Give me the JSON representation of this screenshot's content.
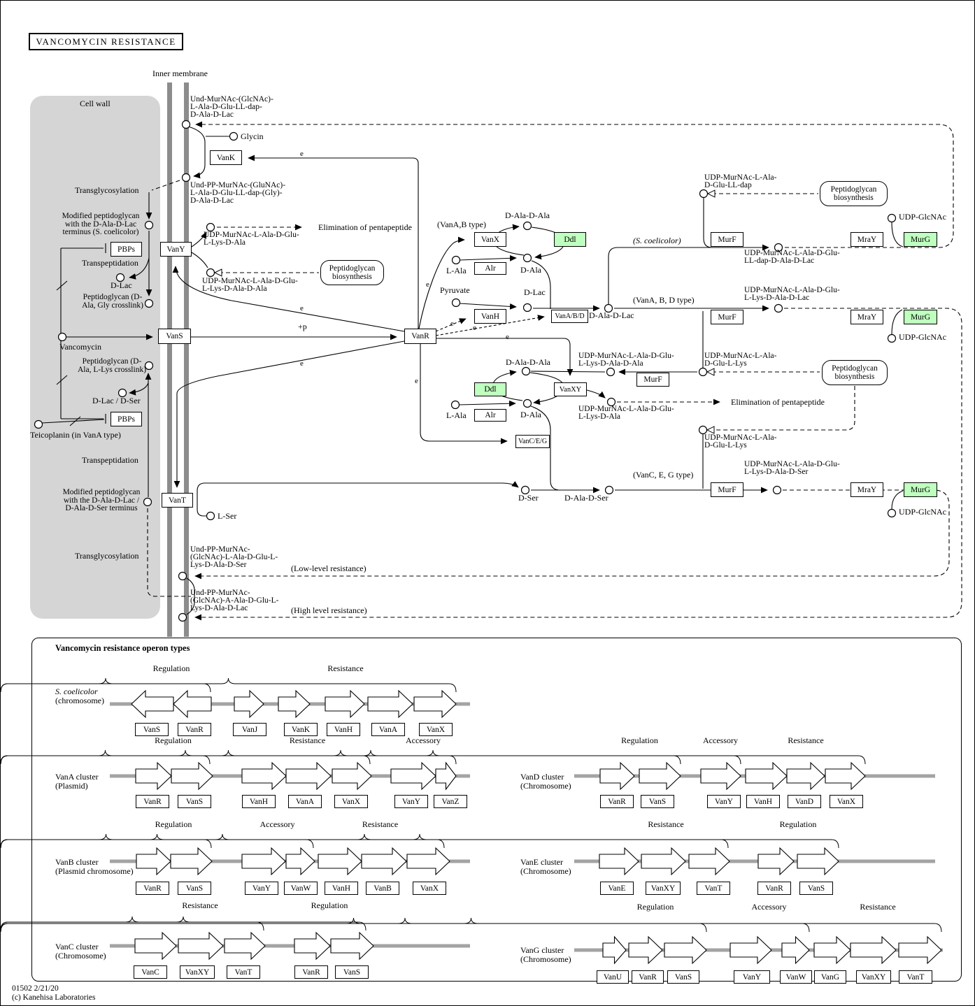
{
  "title": "VANCOMYCIN RESISTANCE",
  "section_title": "Vancomycin resistance operon types",
  "footer": {
    "map_id": "01502 2/21/20",
    "copyright": "(c) Kanehisa Laboratories"
  },
  "colors": {
    "highlight_green": "#bfffbf",
    "membrane_gray": "#8c8c8c",
    "cellwall_gray": "#d5d5d5",
    "chromosome_gray": "#a3a3a3"
  },
  "labels": [
    {
      "id": "inner-membrane",
      "t": "Inner membrane"
    },
    {
      "id": "cell-wall",
      "t": "Cell wall"
    },
    {
      "id": "und-murnac-glcnac-top",
      "t": "Und-MurNAc-(GlcNAc)-\nL-Ala-D-Glu-LL-dap-\nD-Ala-D-Lac"
    },
    {
      "id": "glycin",
      "t": "Glycin"
    },
    {
      "id": "und-pp-murnac-top",
      "t": "Und-PP-MurNAc-(GluNAc)-\nL-Ala-D-Glu-LL-dap-(Gly)-\nD-Ala-D-Lac"
    },
    {
      "id": "transglycosylation-1",
      "t": "Transglycosylation"
    },
    {
      "id": "modified-peptidoglycan-1",
      "t": "Modified peptidoglycan\nwith the D-Ala-D-Lac\nterminus (S. coelicolor)"
    },
    {
      "id": "transpeptidation-1",
      "t": "Transpeptidation"
    },
    {
      "id": "d-lac-1",
      "t": "D-Lac"
    },
    {
      "id": "peptidoglycan-gly-crosslink",
      "t": "Peptidoglycan (D-\nAla, Gly crosslink)"
    },
    {
      "id": "vancomycin",
      "t": "Vancomycin"
    },
    {
      "id": "peptidoglycan-lys-crosslink",
      "t": "Peptidoglycan (D-\nAla, L-Lys crosslink)"
    },
    {
      "id": "d-lac-d-ser",
      "t": "D-Lac / D-Ser"
    },
    {
      "id": "teicoplanin",
      "t": "Teicoplanin (in VanA type)"
    },
    {
      "id": "transpeptidation-2",
      "t": "Transpeptidation"
    },
    {
      "id": "modified-peptidoglycan-2",
      "t": "Modified peptidoglycan\nwith the D-Ala-D-Lac /\nD-Ala-D-Ser terminus"
    },
    {
      "id": "l-ser",
      "t": "L-Ser"
    },
    {
      "id": "transglycosylation-2",
      "t": "Transglycosylation"
    },
    {
      "id": "und-pp-murnac-ser",
      "t": "Und-PP-MurNAc-\n(GlcNAc)-L-Ala-D-Glu-L-\nLys-D-Ala-D-Ser"
    },
    {
      "id": "low-level-resistance",
      "t": "(Low-level resistance)"
    },
    {
      "id": "und-pp-murnac-lac",
      "t": "Und-PP-MurNAc-\n(GlcNAc)-A-Ala-D-Glu-L-\nLys-D-Ala-D-Lac"
    },
    {
      "id": "high-level-resistance",
      "t": "(High level resistance)"
    },
    {
      "id": "udp-murnac-lys-ala",
      "t": "UDP-MurNAc-L-Ala-D-Glu-\nL-Lys-D-Ala"
    },
    {
      "id": "elimination-1",
      "t": "Elimination of pentapeptide"
    },
    {
      "id": "udp-murnac-lys-ala-ala",
      "t": "UDP-MurNAc-L-Ala-D-Glu-\nL-Lys-D-Ala-D-Ala"
    },
    {
      "id": "plus-p",
      "t": "+p"
    },
    {
      "id": "vana-b-type",
      "t": "(VanA,B type)"
    },
    {
      "id": "d-ala-d-ala-1",
      "t": "D-Ala-D-Ala"
    },
    {
      "id": "s-coelicolor",
      "t": "(S. coelicolor)"
    },
    {
      "id": "l-ala-1",
      "t": "L-Ala"
    },
    {
      "id": "d-ala-1",
      "t": "D-Ala"
    },
    {
      "id": "pyruvate",
      "t": "Pyruvate"
    },
    {
      "id": "d-lac-2",
      "t": "D-Lac"
    },
    {
      "id": "d-ala-d-lac",
      "t": "D-Ala-D-Lac"
    },
    {
      "id": "vana-b-d-type",
      "t": "(VanA, B, D type)"
    },
    {
      "id": "udp-murnac-lldap",
      "t": "UDP-MurNAc-L-Ala-\nD-Glu-LL-dap"
    },
    {
      "id": "udp-glcnac-1",
      "t": "UDP-GlcNAc"
    },
    {
      "id": "udp-product-lldap",
      "t": "UDP-MurNAc-L-Ala-D-Glu-\nLL-dap-D-Ala-D-Lac"
    },
    {
      "id": "udp-product-lac",
      "t": "UDP-MurNAc-L-Ala-D-Glu-\nL-Lys-D-Ala-D-Lac"
    },
    {
      "id": "udp-glcnac-2",
      "t": "UDP-GlcNAc"
    },
    {
      "id": "udp-murnac-pentapep",
      "t": "UDP-MurNAc-L-Ala-D-Glu-\nL-Lys-D-Ala-D-Ala"
    },
    {
      "id": "udp-murnac-tripep-1",
      "t": "UDP-MurNAc-L-Ala-\nD-Glu-L-Lys"
    },
    {
      "id": "elimination-2",
      "t": "Elimination of pentapeptide"
    },
    {
      "id": "udp-murnac-tetrapep",
      "t": "UDP-MurNAc-L-Ala-D-Glu-\nL-Lys-D-Ala"
    },
    {
      "id": "d-ala-d-ala-2",
      "t": "D-Ala-D-Ala"
    },
    {
      "id": "l-ala-2",
      "t": "L-Ala"
    },
    {
      "id": "d-ala-2",
      "t": "D-Ala"
    },
    {
      "id": "udp-murnac-tripep-2",
      "t": "UDP-MurNAc-L-Ala-\nD-Glu-L-Lys"
    },
    {
      "id": "vanc-e-g-type",
      "t": "(VanC, E, G type)"
    },
    {
      "id": "udp-product-ser",
      "t": "UDP-MurNAc-L-Ala-D-Glu-\nL-Lys-D-Ala-D-Ser"
    },
    {
      "id": "d-ser",
      "t": "D-Ser"
    },
    {
      "id": "d-ala-d-ser",
      "t": "D-Ala-D-Ser"
    },
    {
      "id": "udp-glcnac-3",
      "t": "UDP-GlcNAc"
    },
    {
      "id": "e-vank",
      "t": "e"
    },
    {
      "id": "e-vanx",
      "t": "e"
    },
    {
      "id": "e-vanh",
      "t": "e"
    },
    {
      "id": "e-vanabd",
      "t": "e"
    },
    {
      "id": "e-vanxy",
      "t": "e"
    },
    {
      "id": "e-vanceg",
      "t": "e"
    },
    {
      "id": "e-vany",
      "t": "e"
    },
    {
      "id": "e-vant",
      "t": "e"
    }
  ],
  "boxes": [
    {
      "id": "vank",
      "t": "VanK"
    },
    {
      "id": "vany",
      "t": "VanY"
    },
    {
      "id": "pbps-1",
      "t": "PBPs"
    },
    {
      "id": "vans",
      "t": "VanS"
    },
    {
      "id": "vanr",
      "t": "VanR"
    },
    {
      "id": "vanx",
      "t": "VanX"
    },
    {
      "id": "ddl-1",
      "t": "Ddl",
      "green": true
    },
    {
      "id": "alr-1",
      "t": "Alr"
    },
    {
      "id": "vanh",
      "t": "VanH"
    },
    {
      "id": "vana-b-d",
      "t": "VanA/B/D"
    },
    {
      "id": "murf-1",
      "t": "MurF"
    },
    {
      "id": "mray-1",
      "t": "MraY"
    },
    {
      "id": "murg-1",
      "t": "MurG",
      "green": true
    },
    {
      "id": "murf-2",
      "t": "MurF"
    },
    {
      "id": "mray-2",
      "t": "MraY"
    },
    {
      "id": "murg-2",
      "t": "MurG",
      "green": true
    },
    {
      "id": "ddl-2",
      "t": "Ddl",
      "green": true
    },
    {
      "id": "vanxy",
      "t": "VanXY"
    },
    {
      "id": "murf-3",
      "t": "MurF"
    },
    {
      "id": "alr-2",
      "t": "Alr"
    },
    {
      "id": "vanc-e-g",
      "t": "VanC/E/G"
    },
    {
      "id": "pbps-2",
      "t": "PBPs"
    },
    {
      "id": "vant",
      "t": "VanT"
    },
    {
      "id": "murf-4",
      "t": "MurF"
    },
    {
      "id": "mray-4",
      "t": "MraY"
    },
    {
      "id": "murg-4",
      "t": "MurG",
      "green": true
    }
  ],
  "link_boxes": [
    {
      "id": "peptidoglycan-biosynthesis-1",
      "t": "Peptidoglycan\nbiosynthesis"
    },
    {
      "id": "peptidoglycan-biosynthesis-2",
      "t": "Peptidoglycan\nbiosynthesis"
    },
    {
      "id": "peptidoglycan-biosynthesis-3",
      "t": "Peptidoglycan\nbiosynthesis"
    }
  ],
  "operons": [
    {
      "cluster": "S. coelicolor",
      "location": "(chromosome)",
      "italic": true,
      "groups": [
        {
          "label": "Regulation",
          "dir": "left",
          "genes": [
            "VanS",
            "VanR"
          ]
        },
        {
          "label": "Resistance",
          "dir": "right",
          "genes": [
            "VanJ",
            "VanK",
            "VanH",
            "VanA",
            "VanX"
          ]
        }
      ]
    },
    {
      "cluster": "VanA cluster",
      "location": "(Plasmid)",
      "groups": [
        {
          "label": "Regulation",
          "dir": "right",
          "genes": [
            "VanR",
            "VanS"
          ]
        },
        {
          "label": "Resistance",
          "dir": "right",
          "genes": [
            "VanH",
            "VanA",
            "VanX"
          ]
        },
        {
          "label": "Accessory",
          "dir": "right",
          "genes": [
            "VanY",
            "VanZ"
          ]
        }
      ]
    },
    {
      "cluster": "VanD cluster",
      "location": "(Chromosome)",
      "groups": [
        {
          "label": "Regulation",
          "dir": "right",
          "genes": [
            "VanR",
            "VanS"
          ]
        },
        {
          "label": "Accessory",
          "dir": "right",
          "genes": [
            "VanY"
          ]
        },
        {
          "label": "Resistance",
          "dir": "right",
          "genes": [
            "VanH",
            "VanD",
            "VanX"
          ]
        }
      ]
    },
    {
      "cluster": "VanB cluster",
      "location": "(Plasmid chromosome)",
      "groups": [
        {
          "label": "Regulation",
          "dir": "right",
          "genes": [
            "VanR",
            "VanS"
          ]
        },
        {
          "label": "Accessory",
          "dir": "right",
          "genes": [
            "VanY",
            "VanW"
          ]
        },
        {
          "label": "Resistance",
          "dir": "right",
          "genes": [
            "VanH",
            "VanB",
            "VanX"
          ]
        }
      ]
    },
    {
      "cluster": "VanE cluster",
      "location": "(Chromosome)",
      "groups": [
        {
          "label": "Resistance",
          "dir": "right",
          "genes": [
            "VanE",
            "VanXY",
            "VanT"
          ]
        },
        {
          "label": "Regulation",
          "dir": "right",
          "genes": [
            "VanR",
            "VanS"
          ]
        }
      ]
    },
    {
      "cluster": "VanC cluster",
      "location": "(Chromosome)",
      "groups": [
        {
          "label": "Resistance",
          "dir": "right",
          "genes": [
            "VanC",
            "VanXY",
            "VanT"
          ]
        },
        {
          "label": "Regulation",
          "dir": "right",
          "genes": [
            "VanR",
            "VanS"
          ]
        }
      ]
    },
    {
      "cluster": "VanG cluster",
      "location": "(Chromosome)",
      "groups": [
        {
          "label": "Regulation",
          "dir": "right",
          "genes": [
            "VanU",
            "VanR",
            "VanS"
          ]
        },
        {
          "label": "Accessory",
          "dir": "right",
          "genes": [
            "VanY",
            "VanW"
          ]
        },
        {
          "label": "Resistance",
          "dir": "right",
          "genes": [
            "VanG",
            "VanXY",
            "VanT"
          ]
        }
      ]
    }
  ]
}
